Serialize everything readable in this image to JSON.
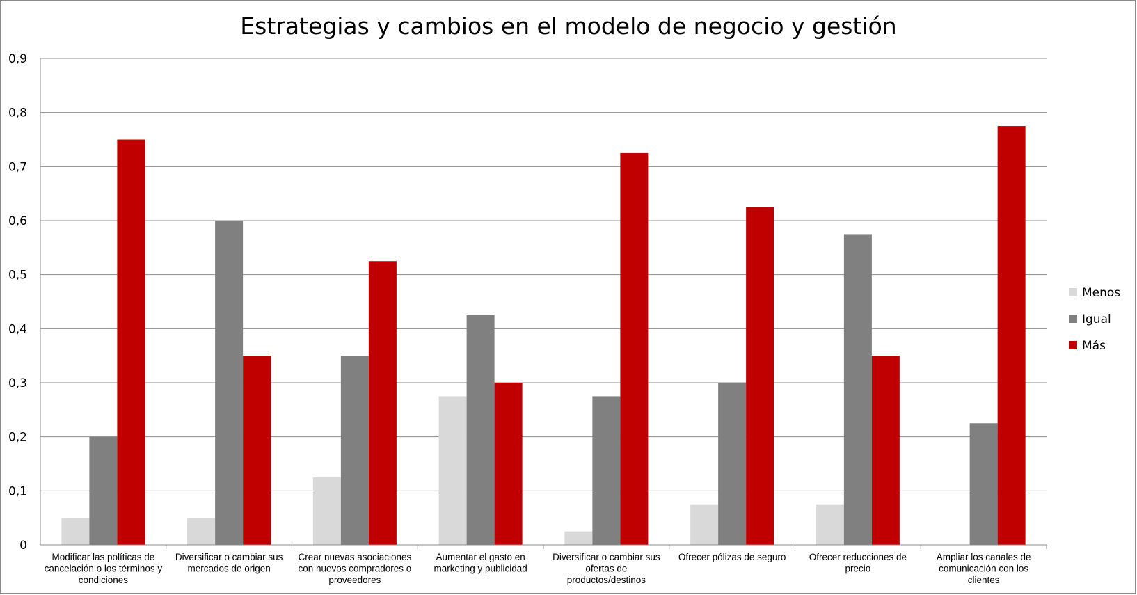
{
  "chart_data": {
    "type": "bar",
    "title": "Estrategias y cambios en el modelo de negocio y gestión",
    "xlabel": "",
    "ylabel": "",
    "ylim": [
      0,
      0.9
    ],
    "yticks": [
      "0",
      "0,1",
      "0,2",
      "0,3",
      "0,4",
      "0,5",
      "0,6",
      "0,7",
      "0,8",
      "0,9"
    ],
    "grid": true,
    "legend_position": "right",
    "categories": [
      [
        "Modificar las políticas de",
        "cancelación o los términos y",
        "condiciones"
      ],
      [
        "Diversificar o cambiar sus",
        "mercados de origen"
      ],
      [
        "Crear nuevas asociaciones",
        "con nuevos compradores o",
        "proveedores"
      ],
      [
        "Aumentar el gasto en",
        "marketing y publicidad"
      ],
      [
        "Diversificar o cambiar sus",
        "ofertas de",
        "productos/destinos"
      ],
      [
        "Ofrecer pólizas de seguro"
      ],
      [
        "Ofrecer reducciones de",
        "precio"
      ],
      [
        "Ampliar los canales de",
        "comunicación con los",
        "clientes"
      ]
    ],
    "series": [
      {
        "name": "Menos",
        "color": "#d9d9d9",
        "values": [
          0.05,
          0.05,
          0.125,
          0.275,
          0.025,
          0.075,
          0.075,
          0
        ]
      },
      {
        "name": "Igual",
        "color": "#808080",
        "values": [
          0.2,
          0.6,
          0.35,
          0.425,
          0.275,
          0.3,
          0.575,
          0.225
        ]
      },
      {
        "name": "Más",
        "color": "#c00000",
        "values": [
          0.75,
          0.35,
          0.525,
          0.3,
          0.725,
          0.625,
          0.35,
          0.775
        ]
      }
    ]
  }
}
